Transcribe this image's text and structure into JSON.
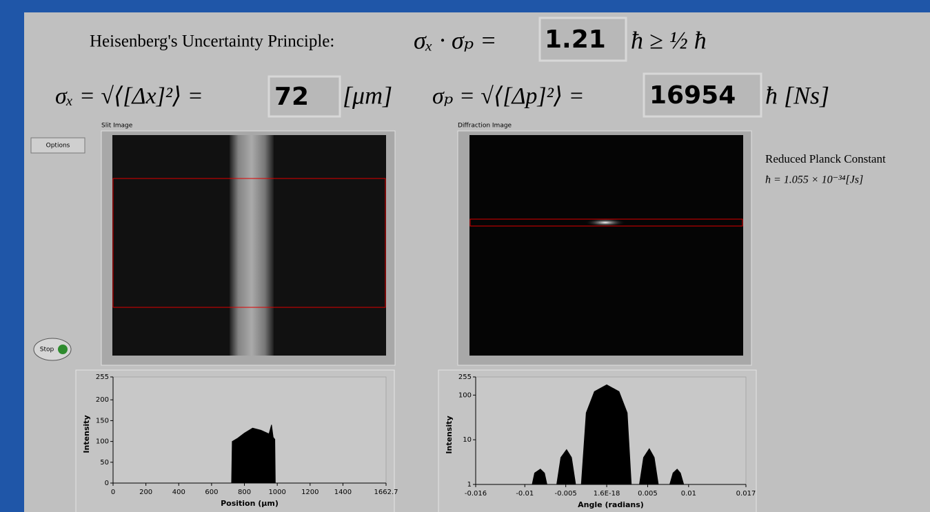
{
  "header": {
    "title": "Heisenberg's Uncertainty Principle:",
    "product_formula": "σₓ · σₚ =",
    "product_value": "1.21",
    "product_unit": "ħ ≥ ½ ħ",
    "sigma_x_formula": "σₓ = √⟨[Δx]²⟩ =",
    "sigma_x_value": "72",
    "sigma_x_unit": "[μm]",
    "sigma_p_formula": "σₚ = √⟨[Δp]²⟩ =",
    "sigma_p_value": "16954",
    "sigma_p_unit": "ħ [Ns]"
  },
  "controls": {
    "options": "Options",
    "stop": "Stop"
  },
  "images": {
    "slit": "Slit Image",
    "diffraction": "Diffraction Image"
  },
  "constant": {
    "label": "Reduced Planck Constant",
    "formula": "ħ = 1.055 × 10⁻³⁴[Js]"
  },
  "chart_data": [
    {
      "type": "area",
      "xlabel": "Position (µm)",
      "ylabel": "Intensity",
      "color": "#000000",
      "x": [
        0,
        722,
        726,
        760,
        800,
        850,
        900,
        950,
        965,
        975,
        985,
        988,
        1662.7
      ],
      "values": [
        0,
        0,
        100,
        108,
        120,
        132,
        127,
        118,
        140,
        110,
        105,
        0,
        0
      ],
      "xlim": [
        0,
        1662.7
      ],
      "ylim": [
        0,
        255
      ],
      "xticks": [
        0,
        200,
        400,
        600,
        800,
        1000,
        1200,
        1400,
        1662.7
      ],
      "yticks": [
        0,
        50,
        100,
        150,
        200,
        255
      ]
    },
    {
      "type": "area",
      "xlabel": "Angle (radians)",
      "ylabel": "Intensity",
      "color": "#000000",
      "ylog": true,
      "x": [
        -0.016,
        -0.0091,
        -0.0088,
        -0.0081,
        -0.0076,
        -0.0073,
        -0.0061,
        -0.0056,
        -0.0049,
        -0.0043,
        -0.0038,
        -0.0031,
        -0.0025,
        -0.0015,
        0,
        0.0015,
        0.0025,
        0.003,
        0.004,
        0.0045,
        0.0052,
        0.0058,
        0.0063,
        0.0077,
        0.0081,
        0.0086,
        0.009,
        0.0094,
        0.017
      ],
      "values": [
        1,
        1,
        1.8,
        2.2,
        1.8,
        1,
        1,
        4,
        6,
        4,
        1,
        1,
        40,
        120,
        170,
        120,
        40,
        1,
        1,
        4,
        6.3,
        4,
        1,
        1,
        1.8,
        2.2,
        1.8,
        1,
        1
      ],
      "xlim": [
        -0.016,
        0.017
      ],
      "ylim": [
        1,
        255
      ],
      "xticks": [
        -0.016,
        -0.01,
        -0.005,
        {
          "value": 1.6e-18,
          "label": "1.6E-18"
        },
        0.005,
        0.01,
        0.017
      ],
      "yticks": [
        1,
        10,
        100,
        255
      ]
    }
  ]
}
